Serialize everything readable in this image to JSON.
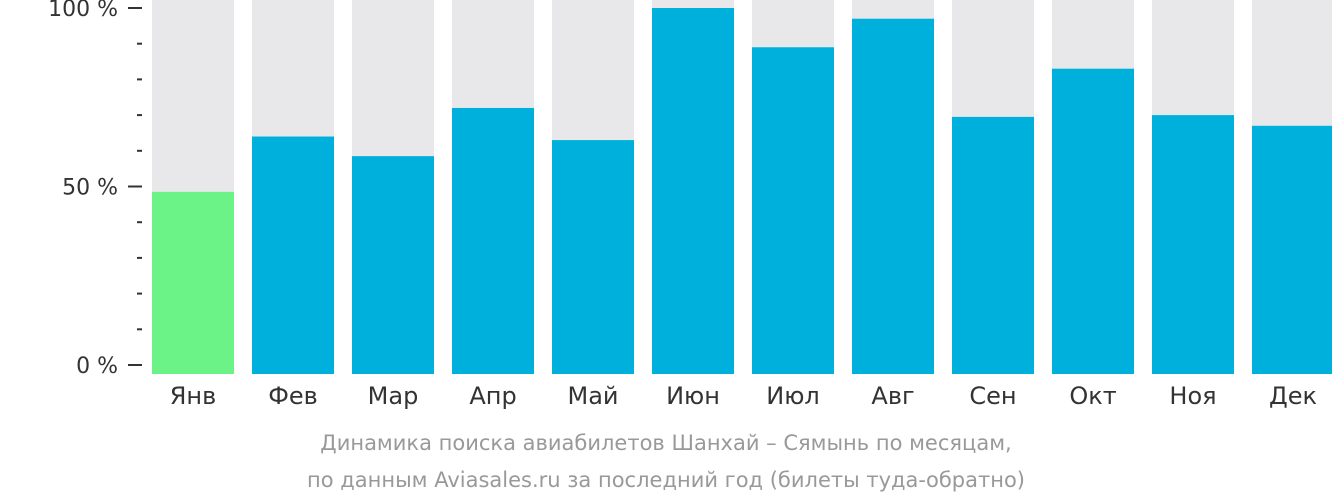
{
  "chart_data": {
    "type": "bar",
    "categories": [
      "Янв",
      "Фев",
      "Мар",
      "Апр",
      "Май",
      "Июн",
      "Июл",
      "Авг",
      "Сен",
      "Окт",
      "Ноя",
      "Дек"
    ],
    "values": [
      48.5,
      64,
      58.5,
      72,
      63,
      100,
      89,
      97,
      69.5,
      83,
      70,
      67
    ],
    "ylim": [
      0,
      100
    ],
    "yticks": [
      {
        "value": 100,
        "label": "100 %"
      },
      {
        "value": 50,
        "label": "50 %"
      },
      {
        "value": 0,
        "label": "0 %"
      }
    ],
    "minor_tick_step": 10,
    "highlight_index": 0,
    "colors": {
      "bar": "#00b0dc",
      "highlight": "#6cf387",
      "background_bar": "#e8e8ea",
      "axis_text": "#333333",
      "caption": "#999999"
    },
    "grid": false,
    "legend": "none"
  },
  "caption": {
    "line1": "Динамика поиска авиабилетов Шанхай – Сямынь по месяцам,",
    "line2": "по данным Aviasales.ru за последний год (билеты туда-обратно)"
  }
}
